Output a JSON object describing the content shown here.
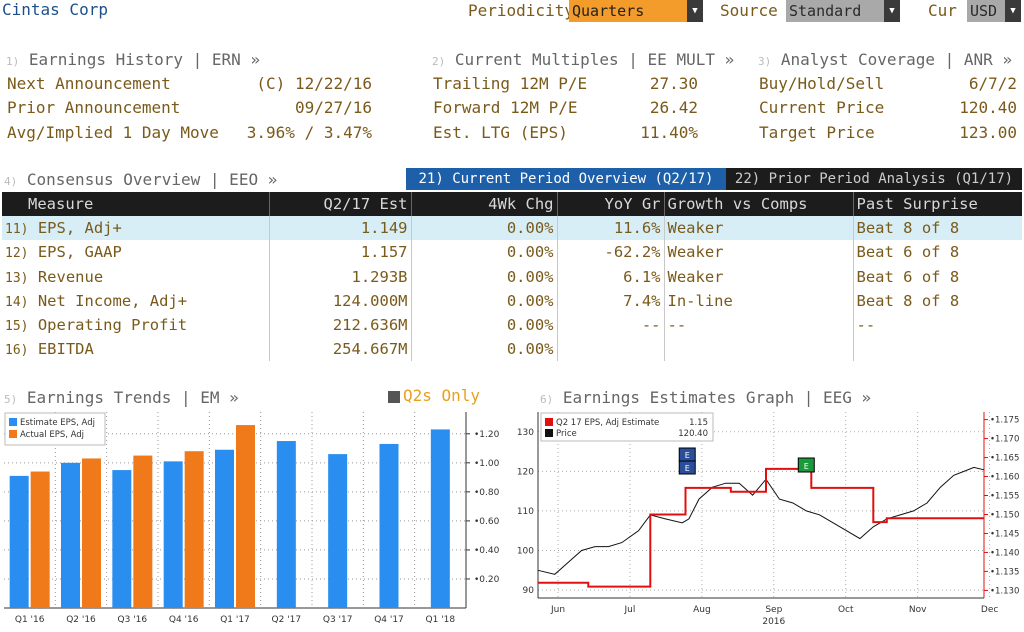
{
  "header": {
    "company": "Cintas Corp",
    "periodicity_label": "Periodicity",
    "periodicity_value": "Quarters",
    "source_label": "Source",
    "source_value": "Standard",
    "cur_label": "Cur",
    "cur_value": "USD"
  },
  "earnings_history": {
    "num": "1)",
    "title": "Earnings History | ERN »",
    "rows": [
      {
        "label": "Next Announcement",
        "value": "(C)  12/22/16"
      },
      {
        "label": "Prior Announcement",
        "value": "09/27/16"
      },
      {
        "label": "Avg/Implied 1 Day Move",
        "value": "3.96% / 3.47%"
      }
    ]
  },
  "current_multiples": {
    "num": "2)",
    "title": "Current Multiples | EE MULT »",
    "rows": [
      {
        "label": "Trailing 12M P/E",
        "value": "27.30"
      },
      {
        "label": "Forward 12M P/E",
        "value": "26.42"
      },
      {
        "label": "Est. LTG (EPS)",
        "value": "11.40%"
      }
    ]
  },
  "analyst_coverage": {
    "num": "3)",
    "title": "Analyst Coverage | ANR »",
    "rows": [
      {
        "label": "Buy/Hold/Sell",
        "value": "6/7/2"
      },
      {
        "label": "Current Price",
        "value": "120.40"
      },
      {
        "label": "Target Price",
        "value": "123.00"
      }
    ]
  },
  "consensus": {
    "num": "4)",
    "title": "Consensus Overview | EEO »",
    "tab_current": "21) Current Period Overview (Q2/17)",
    "tab_prior": "22) Prior Period Analysis (Q1/17)",
    "columns": [
      "Measure",
      "Q2/17 Est",
      "4Wk Chg",
      "YoY Gr",
      "Growth vs Comps",
      "Past Surprise"
    ],
    "rows": [
      {
        "num": "11)",
        "measure": "EPS, Adj+",
        "est": "1.149",
        "chg": "0.00%",
        "yoy": "11.6%",
        "growth": "Weaker",
        "surprise": "Beat 8 of 8"
      },
      {
        "num": "12)",
        "measure": "EPS, GAAP",
        "est": "1.157",
        "chg": "0.00%",
        "yoy": "-62.2%",
        "growth": "Weaker",
        "surprise": "Beat 6 of 8"
      },
      {
        "num": "13)",
        "measure": "Revenue",
        "est": "1.293B",
        "chg": "0.00%",
        "yoy": "6.1%",
        "growth": "Weaker",
        "surprise": "Beat 6 of 8"
      },
      {
        "num": "14)",
        "measure": "Net Income, Adj+",
        "est": "124.000M",
        "chg": "0.00%",
        "yoy": "7.4%",
        "growth": "In-line",
        "surprise": "Beat 8 of 8"
      },
      {
        "num": "15)",
        "measure": "Operating Profit",
        "est": "212.636M",
        "chg": "0.00%",
        "yoy": "--",
        "growth": "--",
        "surprise": "--"
      },
      {
        "num": "16)",
        "measure": "EBITDA",
        "est": "254.667M",
        "chg": "0.00%",
        "yoy": "",
        "growth": "",
        "surprise": ""
      }
    ]
  },
  "trends": {
    "num": "5)",
    "title": "Earnings Trends | EM »",
    "toggle_label": "Q2s Only"
  },
  "graph": {
    "num": "6)",
    "title": "Earnings Estimates Graph | EEG »"
  },
  "chart_data": [
    {
      "type": "bar",
      "categories": [
        "Q1 '16",
        "Q2 '16",
        "Q3 '16",
        "Q4 '16",
        "Q1 '17",
        "Q2 '17",
        "Q3 '17",
        "Q4 '17",
        "Q1 '18"
      ],
      "series": [
        {
          "name": "Estimate EPS, Adj",
          "color": "#2a8ef0",
          "values": [
            0.91,
            1.0,
            0.95,
            1.01,
            1.09,
            1.15,
            1.06,
            1.13,
            1.23
          ]
        },
        {
          "name": "Actual EPS, Adj",
          "color": "#f07a1a",
          "values": [
            0.94,
            1.03,
            1.05,
            1.08,
            1.26,
            null,
            null,
            null,
            null
          ]
        }
      ],
      "yticks": [
        0.2,
        0.4,
        0.6,
        0.8,
        1.0,
        1.2
      ],
      "ytick_labels": [
        "0.20",
        "0.40",
        "0.60",
        "0.80",
        "1.00",
        "1.20"
      ],
      "ylim": [
        0,
        1.35
      ],
      "legend": "top-left"
    },
    {
      "type": "line",
      "series": [
        {
          "name": "Q2 17 EPS, Adj Estimate",
          "legend_value": "1.15",
          "color": "#e01010",
          "axis": "right",
          "x": [
            0,
            3.0,
            3.0,
            6.7,
            6.7,
            8.8,
            8.8,
            11.5,
            11.5,
            13.6,
            13.6,
            16.3,
            16.3,
            20.0,
            20.0,
            20.8,
            20.8,
            24.0,
            24.0,
            26.6
          ],
          "y": [
            1.132,
            1.132,
            1.131,
            1.131,
            1.15,
            1.15,
            1.157,
            1.157,
            1.156,
            1.156,
            1.162,
            1.162,
            1.157,
            1.157,
            1.148,
            1.148,
            1.149,
            1.149,
            1.149,
            1.149
          ]
        },
        {
          "name": "Price",
          "legend_value": "120.40",
          "color": "#111111",
          "axis": "left",
          "x": [
            0,
            1.0,
            1.8,
            2.6,
            3.4,
            4.2,
            5.0,
            6.0,
            6.7,
            7.6,
            8.6,
            9.0,
            9.6,
            10.4,
            11.2,
            12.0,
            12.8,
            13.6,
            14.4,
            15.2,
            16.0,
            16.8,
            17.6,
            18.4,
            19.2,
            20.0,
            20.8,
            21.6,
            22.4,
            23.2,
            24.0,
            24.8,
            25.4,
            26.0,
            26.6
          ],
          "y": [
            95,
            94,
            97,
            100,
            101,
            101,
            102,
            105,
            109,
            108,
            107,
            108,
            113,
            116,
            117,
            117,
            114,
            118,
            113,
            112,
            110,
            109,
            107,
            105,
            103,
            106,
            108,
            109,
            110,
            112,
            116,
            119,
            120,
            121,
            120.4
          ]
        }
      ],
      "x_ticks": [
        "Jun",
        "Jul",
        "Aug",
        "Sep",
        "Oct",
        "Nov",
        "Dec"
      ],
      "x_year": "2016",
      "left_ticks": [
        90,
        100,
        110,
        120,
        130
      ],
      "right_ticks": [
        1.13,
        1.135,
        1.14,
        1.145,
        1.15,
        1.155,
        1.16,
        1.165,
        1.17,
        1.175
      ],
      "left_ylim": [
        88,
        135
      ],
      "right_ylim": [
        1.128,
        1.177
      ],
      "xlim": [
        0,
        26.6
      ],
      "events": [
        {
          "x": 8.9,
          "color": "#2a4e9a",
          "label": "E"
        },
        {
          "x": 16.0,
          "color": "#1a9a3a",
          "label": "E"
        }
      ]
    }
  ]
}
